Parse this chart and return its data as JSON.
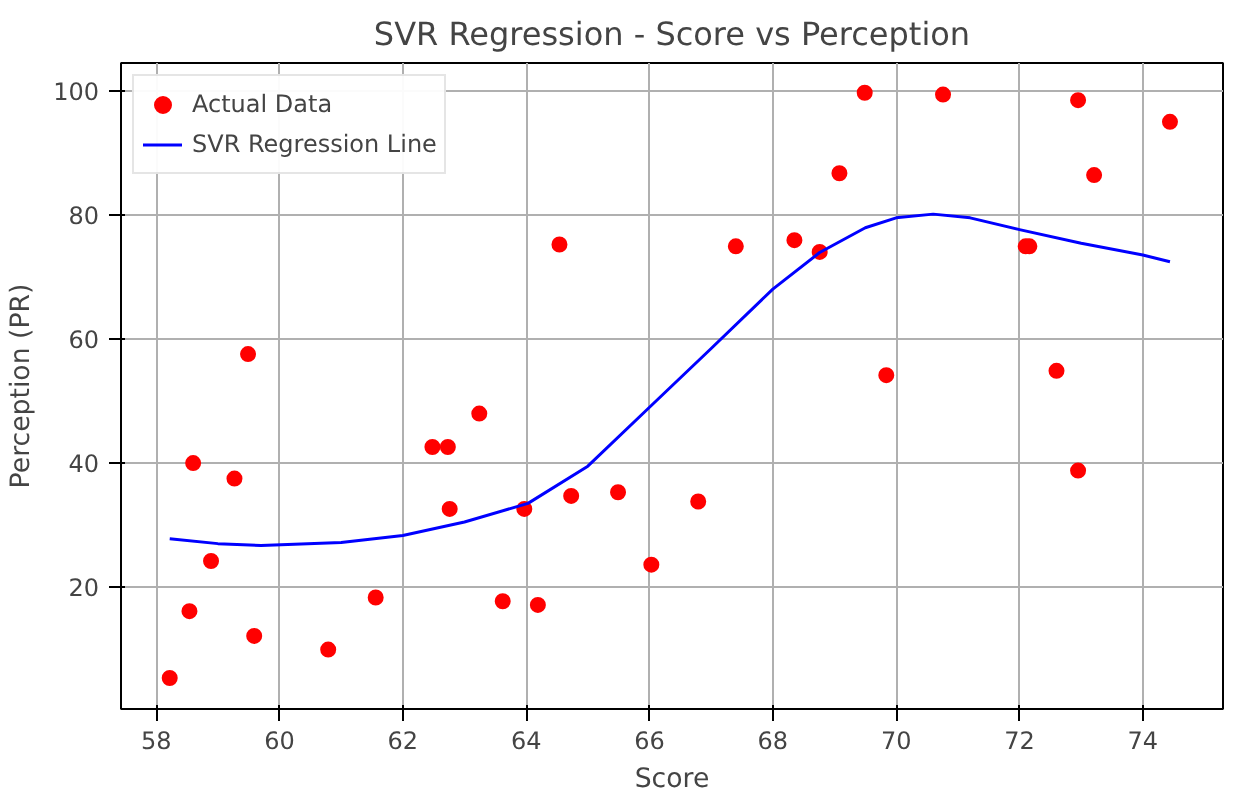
{
  "chart_data": {
    "type": "scatter",
    "title": "SVR Regression - Score vs Perception",
    "xlabel": "Score",
    "ylabel": "Perception (PR)",
    "xlim": [
      57.43,
      75.3
    ],
    "ylim": [
      0.3,
      104.6
    ],
    "xticks": [
      58,
      60,
      62,
      64,
      66,
      68,
      70,
      72,
      74
    ],
    "yticks": [
      20,
      40,
      60,
      80,
      100
    ],
    "grid": true,
    "legend": "top left",
    "series": [
      {
        "name": "Actual Data",
        "marker": "circle",
        "color": "#ff0000",
        "x": [
          58.22,
          58.54,
          58.6,
          58.89,
          59.27,
          59.49,
          59.59,
          60.79,
          61.56,
          62.48,
          62.73,
          62.76,
          63.24,
          63.62,
          63.97,
          64.19,
          64.54,
          64.73,
          65.49,
          66.03,
          66.79,
          67.4,
          68.35,
          68.76,
          69.08,
          69.49,
          69.84,
          70.76,
          72.1,
          72.16,
          72.6,
          72.95,
          72.95,
          73.21,
          74.44
        ],
        "values": [
          5.3,
          16.1,
          40.0,
          24.2,
          37.5,
          57.6,
          12.1,
          9.9,
          18.3,
          42.6,
          42.6,
          32.6,
          48.0,
          17.7,
          32.6,
          17.1,
          75.3,
          34.7,
          35.3,
          23.6,
          33.8,
          75.0,
          76.0,
          74.1,
          86.8,
          99.8,
          54.2,
          99.5,
          75.0,
          75.0,
          54.9,
          98.6,
          38.8,
          86.5,
          95.1
        ]
      },
      {
        "name": "SVR Regression Line",
        "type": "line",
        "color": "#0000ff",
        "line_style": "solid",
        "x": [
          58.22,
          59.0,
          59.7,
          61.0,
          62.0,
          63.0,
          64.03,
          65.0,
          66.03,
          67.0,
          68.0,
          68.76,
          69.5,
          70.0,
          70.6,
          71.2,
          72.0,
          73.0,
          74.0,
          74.44
        ],
        "values": [
          27.8,
          27.0,
          26.7,
          27.2,
          28.3,
          30.5,
          33.5,
          39.5,
          49.3,
          58.5,
          68.1,
          74.0,
          78.0,
          79.6,
          80.2,
          79.6,
          77.7,
          75.5,
          73.6,
          72.5
        ]
      }
    ]
  }
}
